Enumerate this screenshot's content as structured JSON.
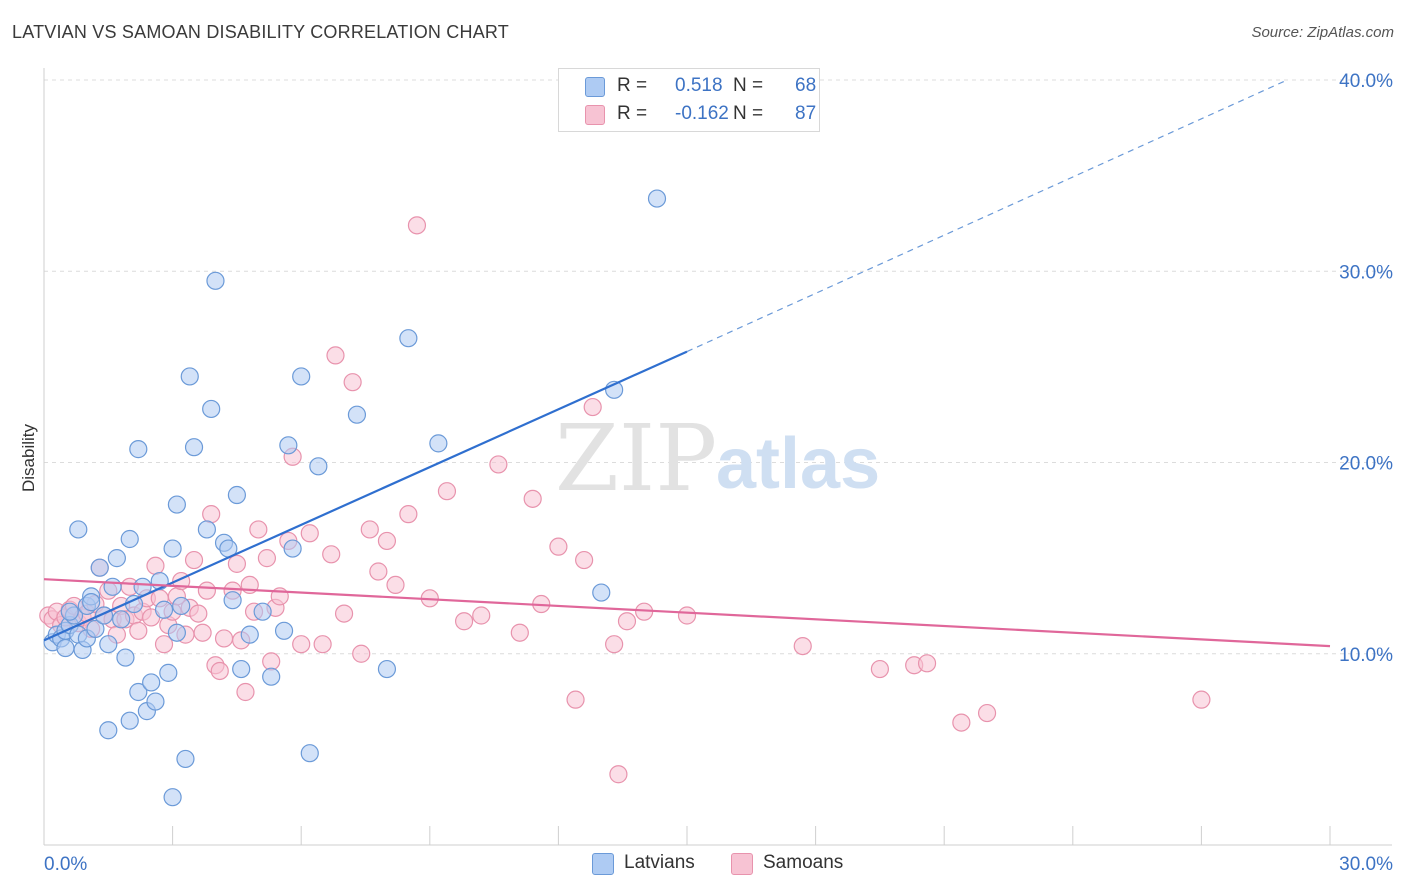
{
  "title": "LATVIAN VS SAMOAN DISABILITY CORRELATION CHART",
  "source": "Source: ZipAtlas.com",
  "watermark": {
    "zip": "ZIP",
    "atlas": "atlas"
  },
  "colors": {
    "latvian_fill": "#aecbf3",
    "latvian_stroke": "#6b9ad8",
    "latvian_line": "#2f6fcf",
    "samoan_fill": "#f7c3d3",
    "samoan_stroke": "#e893ad",
    "samoan_line": "#e0679a",
    "axis_text": "#3d73c4",
    "grid": "#dcdcdc"
  },
  "legend_top": {
    "rows": [
      {
        "r_label": "R =",
        "r_value": "0.518",
        "n_label": "N =",
        "n_value": "68"
      },
      {
        "r_label": "R =",
        "r_value": "-0.162",
        "n_label": "N =",
        "n_value": "87"
      }
    ]
  },
  "legend_bottom": {
    "items": [
      "Latvians",
      "Samoans"
    ]
  },
  "chart_data": {
    "type": "scatter",
    "ylabel": "Disability",
    "xlabel": "",
    "xlim": [
      0,
      30
    ],
    "ylim": [
      0,
      40
    ],
    "x_tick_labels": [
      "0.0%",
      "30.0%"
    ],
    "y_tick_labels": [
      "10.0%",
      "20.0%",
      "30.0%",
      "40.0%"
    ],
    "y_ticks": [
      10,
      20,
      30,
      40
    ],
    "x_minor_ticks": [
      3,
      6,
      9,
      12,
      15,
      18,
      21,
      24,
      27,
      30
    ],
    "grid": "horizontal dashed",
    "series": [
      {
        "name": "Latvians",
        "r": 0.518,
        "n": 68,
        "trend": {
          "x0": 0.0,
          "y0": 10.7,
          "x1": 15.0,
          "y1": 25.8,
          "dash_to_x": 29.0,
          "dash_to_y": 40.0
        },
        "points": [
          [
            0.2,
            10.6
          ],
          [
            0.3,
            11.0
          ],
          [
            0.4,
            10.8
          ],
          [
            0.5,
            11.2
          ],
          [
            0.6,
            11.5
          ],
          [
            0.7,
            12.0
          ],
          [
            0.5,
            10.3
          ],
          [
            0.8,
            11.0
          ],
          [
            0.9,
            10.2
          ],
          [
            1.0,
            12.5
          ],
          [
            1.1,
            13.0
          ],
          [
            1.0,
            10.8
          ],
          [
            1.2,
            11.3
          ],
          [
            1.3,
            14.5
          ],
          [
            1.4,
            12.0
          ],
          [
            1.5,
            10.5
          ],
          [
            1.6,
            13.5
          ],
          [
            1.7,
            15.0
          ],
          [
            1.8,
            11.8
          ],
          [
            1.9,
            9.8
          ],
          [
            2.0,
            16.0
          ],
          [
            2.1,
            12.6
          ],
          [
            2.2,
            8.0
          ],
          [
            2.3,
            13.5
          ],
          [
            2.4,
            7.0
          ],
          [
            2.5,
            8.5
          ],
          [
            2.6,
            7.5
          ],
          [
            2.7,
            13.8
          ],
          [
            2.8,
            12.3
          ],
          [
            2.9,
            9.0
          ],
          [
            3.0,
            15.5
          ],
          [
            3.1,
            17.8
          ],
          [
            3.2,
            12.5
          ],
          [
            3.3,
            4.5
          ],
          [
            3.4,
            24.5
          ],
          [
            3.5,
            20.8
          ],
          [
            3.8,
            16.5
          ],
          [
            3.9,
            22.8
          ],
          [
            4.0,
            29.5
          ],
          [
            4.2,
            15.8
          ],
          [
            4.3,
            15.5
          ],
          [
            4.4,
            12.8
          ],
          [
            4.5,
            18.3
          ],
          [
            4.6,
            9.2
          ],
          [
            4.8,
            11.0
          ],
          [
            5.1,
            12.2
          ],
          [
            5.3,
            8.8
          ],
          [
            5.6,
            11.2
          ],
          [
            5.7,
            20.9
          ],
          [
            5.8,
            15.5
          ],
          [
            6.0,
            24.5
          ],
          [
            6.2,
            4.8
          ],
          [
            6.4,
            19.8
          ],
          [
            7.3,
            22.5
          ],
          [
            8.0,
            9.2
          ],
          [
            8.5,
            26.5
          ],
          [
            9.2,
            21.0
          ],
          [
            13.0,
            13.2
          ],
          [
            13.3,
            23.8
          ],
          [
            14.3,
            33.8
          ],
          [
            1.5,
            6.0
          ],
          [
            0.8,
            16.5
          ],
          [
            2.2,
            20.7
          ],
          [
            1.1,
            12.7
          ],
          [
            0.6,
            12.2
          ],
          [
            3.0,
            2.5
          ],
          [
            2.0,
            6.5
          ],
          [
            3.1,
            11.1
          ]
        ]
      },
      {
        "name": "Samoans",
        "r": -0.162,
        "n": 87,
        "trend": {
          "x0": 0.0,
          "y0": 13.9,
          "x1": 30.0,
          "y1": 10.4
        },
        "points": [
          [
            0.1,
            12.0
          ],
          [
            0.2,
            11.8
          ],
          [
            0.3,
            12.2
          ],
          [
            0.4,
            11.5
          ],
          [
            0.5,
            11.9
          ],
          [
            0.6,
            12.3
          ],
          [
            0.7,
            12.5
          ],
          [
            0.8,
            11.6
          ],
          [
            0.9,
            11.9
          ],
          [
            1.0,
            12.1
          ],
          [
            1.1,
            11.3
          ],
          [
            1.2,
            12.6
          ],
          [
            1.3,
            14.5
          ],
          [
            1.4,
            12.0
          ],
          [
            1.5,
            13.3
          ],
          [
            1.6,
            11.8
          ],
          [
            1.7,
            11.0
          ],
          [
            1.8,
            12.5
          ],
          [
            1.9,
            11.8
          ],
          [
            2.0,
            13.5
          ],
          [
            2.1,
            12.0
          ],
          [
            2.2,
            11.2
          ],
          [
            2.3,
            12.2
          ],
          [
            2.4,
            12.9
          ],
          [
            2.5,
            11.9
          ],
          [
            2.6,
            14.6
          ],
          [
            2.7,
            12.9
          ],
          [
            2.8,
            10.5
          ],
          [
            2.9,
            11.5
          ],
          [
            3.0,
            12.2
          ],
          [
            3.1,
            13.0
          ],
          [
            3.2,
            13.8
          ],
          [
            3.3,
            11.0
          ],
          [
            3.4,
            12.4
          ],
          [
            3.5,
            14.9
          ],
          [
            3.6,
            12.1
          ],
          [
            3.7,
            11.1
          ],
          [
            3.8,
            13.3
          ],
          [
            3.9,
            17.3
          ],
          [
            4.0,
            9.4
          ],
          [
            4.1,
            9.1
          ],
          [
            4.2,
            10.8
          ],
          [
            4.4,
            13.3
          ],
          [
            4.5,
            14.7
          ],
          [
            4.6,
            10.7
          ],
          [
            4.7,
            8.0
          ],
          [
            4.8,
            13.6
          ],
          [
            4.9,
            12.2
          ],
          [
            5.0,
            16.5
          ],
          [
            5.2,
            15.0
          ],
          [
            5.3,
            9.6
          ],
          [
            5.4,
            12.4
          ],
          [
            5.5,
            13.0
          ],
          [
            5.7,
            15.9
          ],
          [
            5.8,
            20.3
          ],
          [
            6.0,
            10.5
          ],
          [
            6.2,
            16.3
          ],
          [
            6.5,
            10.5
          ],
          [
            6.7,
            15.2
          ],
          [
            6.8,
            25.6
          ],
          [
            7.0,
            12.1
          ],
          [
            7.2,
            24.2
          ],
          [
            7.4,
            10.0
          ],
          [
            7.6,
            16.5
          ],
          [
            7.8,
            14.3
          ],
          [
            8.0,
            15.9
          ],
          [
            8.2,
            13.6
          ],
          [
            8.5,
            17.3
          ],
          [
            8.7,
            32.4
          ],
          [
            9.0,
            12.9
          ],
          [
            9.4,
            18.5
          ],
          [
            9.8,
            11.7
          ],
          [
            10.2,
            12.0
          ],
          [
            10.6,
            19.9
          ],
          [
            11.1,
            11.1
          ],
          [
            11.4,
            18.1
          ],
          [
            11.6,
            12.6
          ],
          [
            12.0,
            15.6
          ],
          [
            12.4,
            7.6
          ],
          [
            12.6,
            14.9
          ],
          [
            12.8,
            22.9
          ],
          [
            13.3,
            10.5
          ],
          [
            13.6,
            11.7
          ],
          [
            14.0,
            12.2
          ],
          [
            15.0,
            12.0
          ],
          [
            17.7,
            10.4
          ],
          [
            19.5,
            9.2
          ]
        ]
      }
    ],
    "extra_samoan_points": [
      [
        13.4,
        3.7
      ],
      [
        20.3,
        9.4
      ],
      [
        20.6,
        9.5
      ],
      [
        21.4,
        6.4
      ],
      [
        22.0,
        6.9
      ],
      [
        27.0,
        7.6
      ]
    ]
  }
}
